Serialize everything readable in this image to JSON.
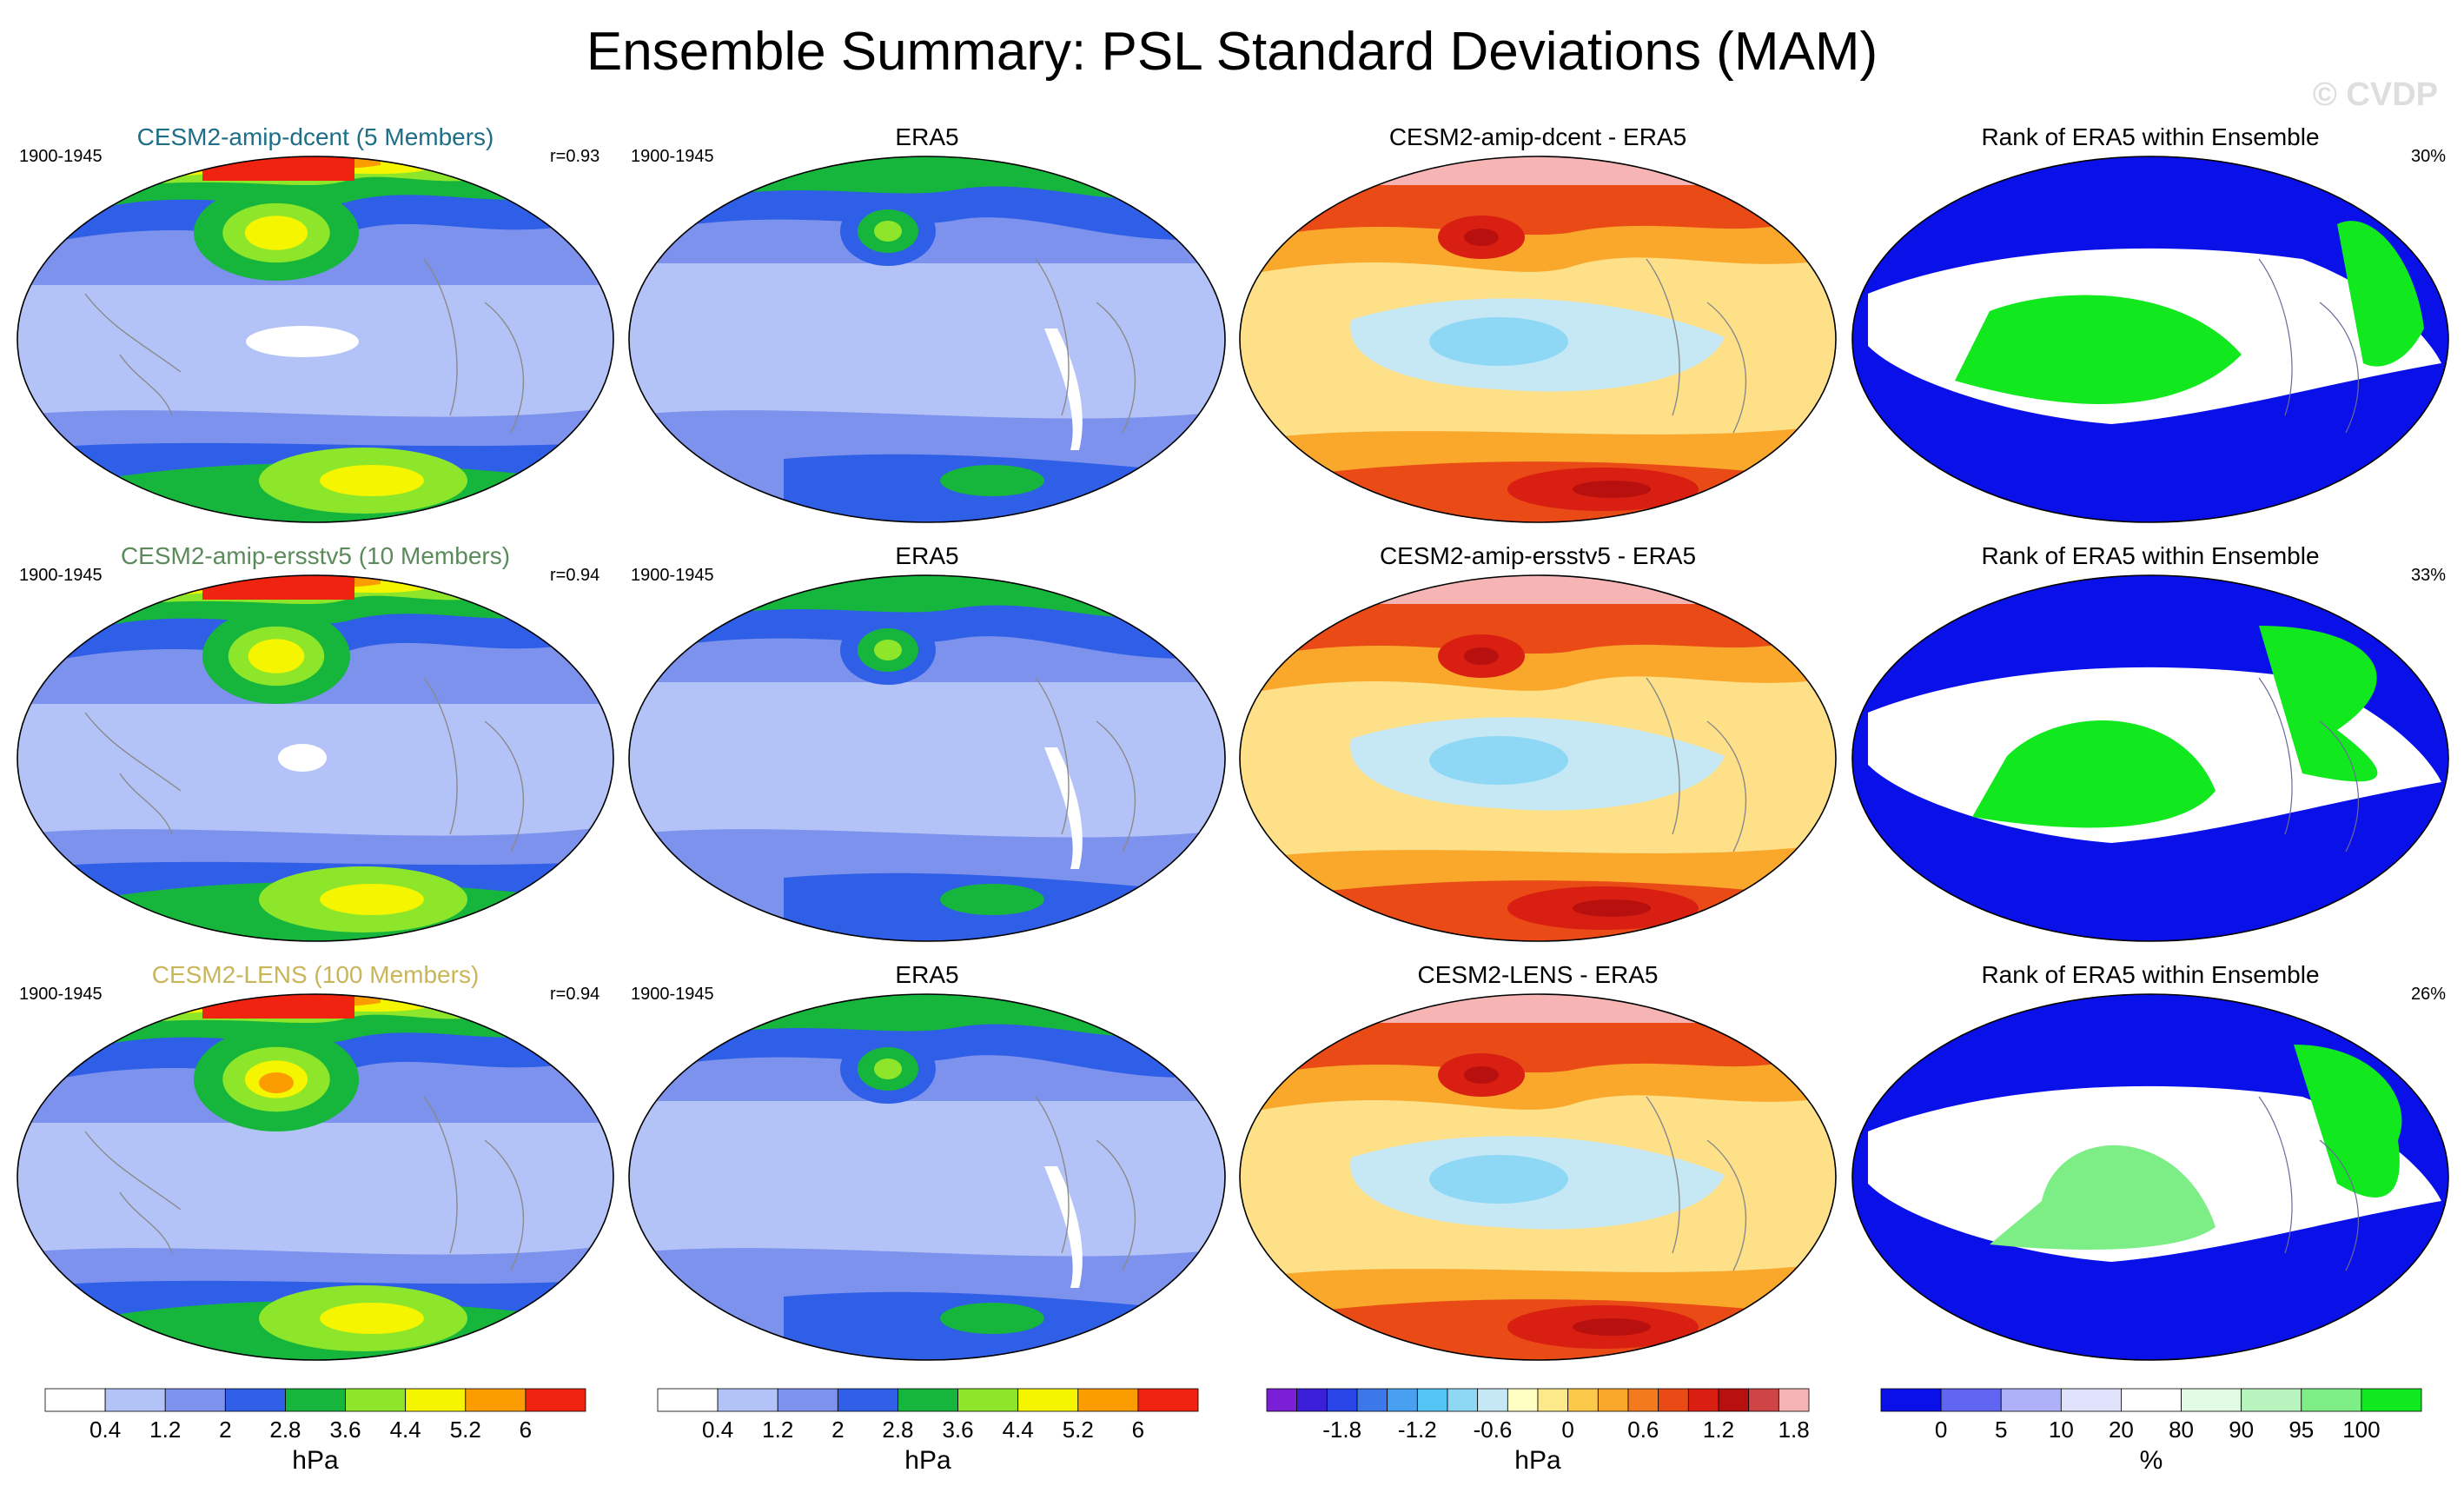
{
  "title": "Ensemble Summary: PSL Standard Deviations (MAM)",
  "watermark": "© CVDP",
  "rows": [
    {
      "model_title": "CESM2-amip-dcent (5 Members)",
      "model_title_color": "#1d6e86",
      "period": "1900-1945",
      "r_value": "r=0.93",
      "obs_title": "ERA5",
      "obs_period": "1900-1945",
      "diff_title": "CESM2-amip-dcent - ERA5",
      "rank_title": "Rank of ERA5 within Ensemble",
      "rank_pct": "30%"
    },
    {
      "model_title": "CESM2-amip-ersstv5 (10 Members)",
      "model_title_color": "#5b8a5b",
      "period": "1900-1945",
      "r_value": "r=0.94",
      "obs_title": "ERA5",
      "obs_period": "1900-1945",
      "diff_title": "CESM2-amip-ersstv5 - ERA5",
      "rank_title": "Rank of ERA5 within Ensemble",
      "rank_pct": "33%"
    },
    {
      "model_title": "CESM2-LENS (100 Members)",
      "model_title_color": "#c9b55a",
      "period": "1900-1945",
      "r_value": "r=0.94",
      "obs_title": "ERA5",
      "obs_period": "1900-1945",
      "diff_title": "CESM2-LENS - ERA5",
      "rank_title": "Rank of ERA5 within Ensemble",
      "rank_pct": "26%"
    }
  ],
  "colorbars": [
    {
      "unit": "hPa",
      "colors": [
        "#ffffff",
        "#b3c3f7",
        "#7c92ec",
        "#2f5fe6",
        "#16b53c",
        "#8ee62a",
        "#f5f500",
        "#fb9c00",
        "#f02210"
      ],
      "labels": [
        "0.4",
        "1.2",
        "2",
        "2.8",
        "3.6",
        "4.4",
        "5.2",
        "6"
      ]
    },
    {
      "unit": "hPa",
      "colors": [
        "#ffffff",
        "#b3c3f7",
        "#7c92ec",
        "#2f5fe6",
        "#16b53c",
        "#8ee62a",
        "#f5f500",
        "#fb9c00",
        "#f02210"
      ],
      "labels": [
        "0.4",
        "1.2",
        "2",
        "2.8",
        "3.6",
        "4.4",
        "5.2",
        "6"
      ]
    },
    {
      "unit": "hPa",
      "colors": [
        "#7a1fd6",
        "#3b1ed8",
        "#2a46e8",
        "#3c78ea",
        "#4aa0f0",
        "#54c4f5",
        "#8fd8f5",
        "#c6e8f4",
        "#ffffc4",
        "#fde88a",
        "#fcc84a",
        "#f9a82c",
        "#f37b1e",
        "#ea4a16",
        "#d81f12",
        "#b80f0f",
        "#cf4545",
        "#f6b4b4"
      ],
      "labels": [
        "-1.8",
        "-1.2",
        "-0.6",
        "0",
        "0.6",
        "1.2",
        "1.8"
      ]
    },
    {
      "unit": "%",
      "colors": [
        "#0a10e8",
        "#6166f2",
        "#aeb1f7",
        "#e0e2fb",
        "#ffffff",
        "#e1fbe3",
        "#b8f4bd",
        "#7cee85",
        "#11e81e"
      ],
      "labels": [
        "0",
        "5",
        "10",
        "20",
        "80",
        "90",
        "95",
        "100"
      ]
    }
  ],
  "palette": {
    "std": [
      "#ffffff",
      "#b3c3f7",
      "#7c92ec",
      "#2f5fe6",
      "#16b53c",
      "#8ee62a",
      "#f5f500",
      "#fb9c00",
      "#f02210"
    ],
    "diff_bg": "#fde088",
    "rank_bg": "#0a10e8"
  }
}
